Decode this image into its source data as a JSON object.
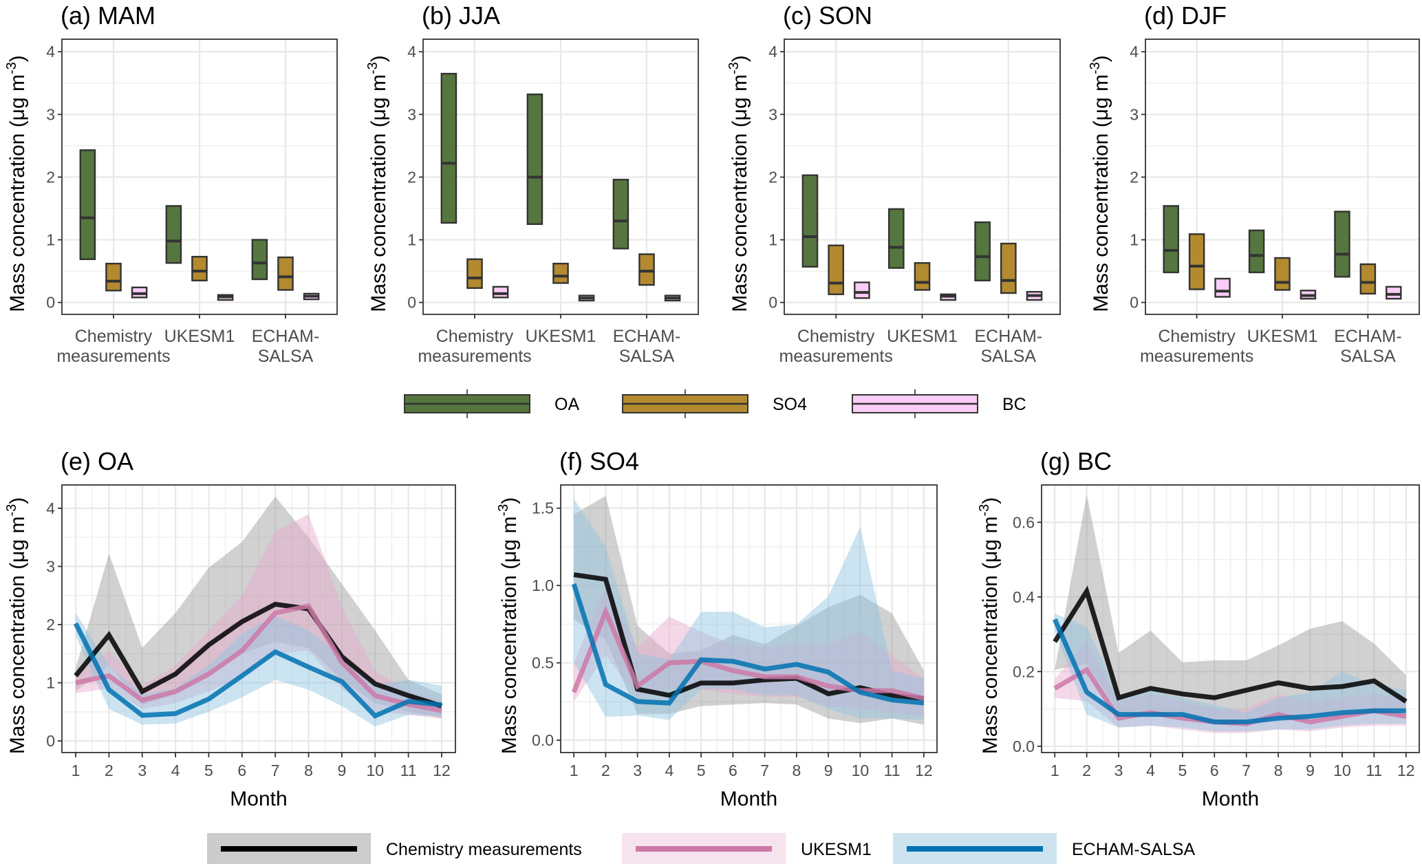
{
  "figure": {
    "top_legend": [
      {
        "label": "OA",
        "fill": "#56763F"
      },
      {
        "label": "SO4",
        "fill": "#B38A2F"
      },
      {
        "label": "BC",
        "fill": "#F9CCF5"
      }
    ],
    "bottom_legend": [
      {
        "label": "Chemistry measurements",
        "line": "#000000",
        "band": "#CCCCCC"
      },
      {
        "label": "UKESM1",
        "line": "#CC79A7",
        "band": "#F5E3EE"
      },
      {
        "label": "ECHAM-SALSA",
        "line": "#0072B2",
        "band": "#CDE3EF"
      }
    ]
  },
  "chart_data": [
    {
      "type": "boxplot",
      "title": "(a) MAM",
      "ylabel": "Mass concentration (μg m⁻³)",
      "ylim": [
        0,
        4
      ],
      "yticks": [
        0,
        1,
        2,
        3,
        4
      ],
      "categories": [
        [
          "Chemistry",
          "measurements"
        ],
        [
          "UKESM1"
        ],
        [
          "ECHAM-",
          "SALSA"
        ]
      ],
      "series": [
        {
          "name": "OA",
          "boxes": [
            [
              0.69,
              1.35,
              2.43
            ],
            [
              0.63,
              0.98,
              1.54
            ],
            [
              0.37,
              0.63,
              1.0
            ]
          ]
        },
        {
          "name": "SO4",
          "boxes": [
            [
              0.19,
              0.34,
              0.62
            ],
            [
              0.35,
              0.5,
              0.73
            ],
            [
              0.2,
              0.41,
              0.72
            ]
          ]
        },
        {
          "name": "BC",
          "boxes": [
            [
              0.08,
              0.14,
              0.24
            ],
            [
              0.04,
              0.09,
              0.12
            ],
            [
              0.05,
              0.1,
              0.14
            ]
          ]
        }
      ]
    },
    {
      "type": "boxplot",
      "title": "(b) JJA",
      "ylabel": "Mass concentration (μg m⁻³)",
      "ylim": [
        0,
        4
      ],
      "yticks": [
        0,
        1,
        2,
        3,
        4
      ],
      "categories": [
        [
          "Chemistry",
          "measurements"
        ],
        [
          "UKESM1"
        ],
        [
          "ECHAM-",
          "SALSA"
        ]
      ],
      "series": [
        {
          "name": "OA",
          "boxes": [
            [
              1.27,
              2.22,
              3.65
            ],
            [
              1.25,
              2.0,
              3.32
            ],
            [
              0.86,
              1.3,
              1.96
            ]
          ]
        },
        {
          "name": "SO4",
          "boxes": [
            [
              0.23,
              0.39,
              0.69
            ],
            [
              0.31,
              0.42,
              0.62
            ],
            [
              0.28,
              0.5,
              0.77
            ]
          ]
        },
        {
          "name": "BC",
          "boxes": [
            [
              0.08,
              0.14,
              0.25
            ],
            [
              0.03,
              0.07,
              0.11
            ],
            [
              0.03,
              0.07,
              0.11
            ]
          ]
        }
      ]
    },
    {
      "type": "boxplot",
      "title": "(c) SON",
      "ylabel": "Mass concentration (μg m⁻³)",
      "ylim": [
        0,
        4
      ],
      "yticks": [
        0,
        1,
        2,
        3,
        4
      ],
      "categories": [
        [
          "Chemistry",
          "measurements"
        ],
        [
          "UKESM1"
        ],
        [
          "ECHAM-",
          "SALSA"
        ]
      ],
      "series": [
        {
          "name": "OA",
          "boxes": [
            [
              0.57,
              1.05,
              2.03
            ],
            [
              0.55,
              0.88,
              1.49
            ],
            [
              0.35,
              0.73,
              1.28
            ]
          ]
        },
        {
          "name": "SO4",
          "boxes": [
            [
              0.13,
              0.31,
              0.91
            ],
            [
              0.2,
              0.32,
              0.63
            ],
            [
              0.15,
              0.35,
              0.94
            ]
          ]
        },
        {
          "name": "BC",
          "boxes": [
            [
              0.07,
              0.16,
              0.32
            ],
            [
              0.04,
              0.1,
              0.13
            ],
            [
              0.04,
              0.11,
              0.17
            ]
          ]
        }
      ]
    },
    {
      "type": "boxplot",
      "title": "(d) DJF",
      "ylabel": "Mass concentration (μg m⁻³)",
      "ylim": [
        0,
        4
      ],
      "yticks": [
        0,
        1,
        2,
        3,
        4
      ],
      "categories": [
        [
          "Chemistry",
          "measurements"
        ],
        [
          "UKESM1"
        ],
        [
          "ECHAM-",
          "SALSA"
        ]
      ],
      "series": [
        {
          "name": "OA",
          "boxes": [
            [
              0.48,
              0.83,
              1.54
            ],
            [
              0.48,
              0.75,
              1.15
            ],
            [
              0.41,
              0.77,
              1.45
            ]
          ]
        },
        {
          "name": "SO4",
          "boxes": [
            [
              0.21,
              0.58,
              1.09
            ],
            [
              0.2,
              0.32,
              0.71
            ],
            [
              0.14,
              0.32,
              0.61
            ]
          ]
        },
        {
          "name": "BC",
          "boxes": [
            [
              0.09,
              0.18,
              0.38
            ],
            [
              0.06,
              0.11,
              0.19
            ],
            [
              0.06,
              0.13,
              0.25
            ]
          ]
        }
      ]
    },
    {
      "type": "line",
      "title": "(e) OA",
      "xlabel": "Month",
      "ylabel": "Mass concentration (μg m⁻³)",
      "x": [
        1,
        2,
        3,
        4,
        5,
        6,
        7,
        8,
        9,
        10,
        11,
        12
      ],
      "ylim": [
        -0.2,
        4.4
      ],
      "yticks": [
        0,
        1,
        2,
        3,
        4
      ],
      "ytick_labels": [
        "0",
        "1",
        "2",
        "3",
        "4"
      ],
      "series": [
        {
          "name": "Chemistry measurements",
          "values": [
            1.12,
            1.82,
            0.85,
            1.15,
            1.65,
            2.05,
            2.35,
            2.27,
            1.45,
            0.98,
            0.78,
            0.6
          ],
          "lower": [
            0.85,
            1.3,
            0.62,
            0.8,
            1.15,
            1.5,
            1.7,
            1.6,
            1.05,
            0.65,
            0.5,
            0.4
          ],
          "upper": [
            1.25,
            3.22,
            1.6,
            2.2,
            2.98,
            3.42,
            4.2,
            3.5,
            2.7,
            1.9,
            1.05,
            0.8
          ]
        },
        {
          "name": "UKESM1",
          "values": [
            1.0,
            1.12,
            0.7,
            0.85,
            1.15,
            1.55,
            2.2,
            2.32,
            1.35,
            0.78,
            0.63,
            0.52
          ],
          "lower": [
            0.82,
            0.9,
            0.55,
            0.65,
            0.85,
            1.1,
            1.5,
            1.55,
            0.9,
            0.5,
            0.45,
            0.38
          ],
          "upper": [
            1.15,
            1.55,
            0.95,
            1.3,
            1.9,
            2.5,
            3.6,
            3.9,
            2.3,
            1.2,
            0.85,
            0.7
          ]
        },
        {
          "name": "ECHAM-SALSA",
          "values": [
            2.02,
            0.88,
            0.44,
            0.47,
            0.72,
            1.12,
            1.53,
            1.27,
            1.02,
            0.43,
            0.68,
            0.62
          ],
          "lower": [
            1.8,
            0.55,
            0.28,
            0.3,
            0.5,
            0.75,
            1.05,
            0.88,
            0.6,
            0.25,
            0.45,
            0.42
          ],
          "upper": [
            2.2,
            1.3,
            0.8,
            0.9,
            1.3,
            1.85,
            2.15,
            1.9,
            1.45,
            0.95,
            1.05,
            0.95
          ]
        }
      ]
    },
    {
      "type": "line",
      "title": "(f) SO4",
      "xlabel": "Month",
      "ylabel": "Mass concentration (μg m⁻³)",
      "x": [
        1,
        2,
        3,
        4,
        5,
        6,
        7,
        8,
        9,
        10,
        11,
        12
      ],
      "ylim": [
        -0.08,
        1.65
      ],
      "yticks": [
        0,
        0.5,
        1.0,
        1.5
      ],
      "ytick_labels": [
        "0.0",
        "0.5",
        "1.0",
        "1.5"
      ],
      "series": [
        {
          "name": "Chemistry measurements",
          "values": [
            1.07,
            1.04,
            0.33,
            0.29,
            0.37,
            0.37,
            0.39,
            0.4,
            0.3,
            0.34,
            0.29,
            0.27
          ],
          "lower": [
            0.78,
            0.65,
            0.17,
            0.17,
            0.22,
            0.23,
            0.24,
            0.23,
            0.14,
            0.11,
            0.14,
            0.1
          ],
          "upper": [
            1.46,
            1.58,
            0.74,
            0.56,
            0.58,
            0.68,
            0.62,
            0.74,
            0.86,
            0.94,
            0.82,
            0.45
          ]
        },
        {
          "name": "UKESM1",
          "values": [
            0.31,
            0.83,
            0.35,
            0.5,
            0.51,
            0.45,
            0.41,
            0.41,
            0.35,
            0.32,
            0.32,
            0.27
          ],
          "lower": [
            0.25,
            0.55,
            0.28,
            0.33,
            0.33,
            0.3,
            0.28,
            0.28,
            0.22,
            0.2,
            0.18,
            0.15
          ],
          "upper": [
            0.5,
            1.0,
            0.6,
            0.8,
            0.7,
            0.62,
            0.6,
            0.62,
            0.62,
            0.7,
            0.55,
            0.4
          ]
        },
        {
          "name": "ECHAM-SALSA",
          "values": [
            1.01,
            0.36,
            0.25,
            0.24,
            0.52,
            0.51,
            0.46,
            0.49,
            0.44,
            0.31,
            0.26,
            0.24
          ],
          "lower": [
            0.5,
            0.15,
            0.16,
            0.13,
            0.33,
            0.33,
            0.29,
            0.29,
            0.2,
            0.14,
            0.14,
            0.13
          ],
          "upper": [
            1.56,
            1.25,
            0.56,
            0.52,
            0.83,
            0.83,
            0.73,
            0.75,
            0.93,
            1.38,
            0.45,
            0.4
          ]
        }
      ]
    },
    {
      "type": "line",
      "title": "(g) BC",
      "xlabel": "Month",
      "ylabel": "Mass concentration (μg m⁻³)",
      "x": [
        1,
        2,
        3,
        4,
        5,
        6,
        7,
        8,
        9,
        10,
        11,
        12
      ],
      "ylim": [
        -0.017,
        0.7
      ],
      "yticks": [
        0,
        0.2,
        0.4,
        0.6
      ],
      "ytick_labels": [
        "0.0",
        "0.2",
        "0.4",
        "0.6"
      ],
      "series": [
        {
          "name": "Chemistry measurements",
          "values": [
            0.28,
            0.415,
            0.13,
            0.155,
            0.14,
            0.13,
            0.15,
            0.17,
            0.155,
            0.16,
            0.175,
            0.12
          ],
          "lower": [
            0.205,
            0.22,
            0.09,
            0.09,
            0.08,
            0.07,
            0.06,
            0.08,
            0.08,
            0.09,
            0.09,
            0.1
          ],
          "upper": [
            0.205,
            0.675,
            0.25,
            0.31,
            0.225,
            0.23,
            0.23,
            0.27,
            0.315,
            0.335,
            0.275,
            0.19
          ]
        },
        {
          "name": "UKESM1",
          "values": [
            0.155,
            0.205,
            0.075,
            0.09,
            0.075,
            0.065,
            0.06,
            0.085,
            0.065,
            0.08,
            0.095,
            0.08
          ],
          "lower": [
            0.13,
            0.12,
            0.05,
            0.055,
            0.045,
            0.035,
            0.035,
            0.045,
            0.04,
            0.05,
            0.055,
            0.055
          ],
          "upper": [
            0.18,
            0.28,
            0.12,
            0.14,
            0.12,
            0.1,
            0.1,
            0.14,
            0.12,
            0.13,
            0.14,
            0.13
          ]
        },
        {
          "name": "ECHAM-SALSA",
          "values": [
            0.34,
            0.145,
            0.085,
            0.085,
            0.085,
            0.065,
            0.065,
            0.075,
            0.08,
            0.09,
            0.095,
            0.095
          ],
          "lower": [
            0.31,
            0.085,
            0.05,
            0.055,
            0.05,
            0.04,
            0.04,
            0.045,
            0.045,
            0.055,
            0.06,
            0.06
          ],
          "upper": [
            0.355,
            0.32,
            0.135,
            0.15,
            0.13,
            0.11,
            0.09,
            0.13,
            0.145,
            0.2,
            0.165,
            0.15
          ]
        }
      ]
    }
  ]
}
